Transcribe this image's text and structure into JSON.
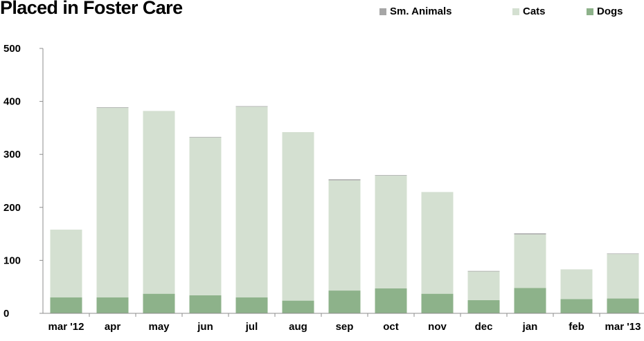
{
  "chart_data": {
    "type": "bar",
    "stacked": true,
    "title": "Placed in Foster Care",
    "categories": [
      "mar '12",
      "apr",
      "may",
      "jun",
      "jul",
      "aug",
      "sep",
      "oct",
      "nov",
      "dec",
      "jan",
      "feb",
      "mar '13"
    ],
    "series": [
      {
        "name": "Dogs",
        "color": "#8db28a",
        "values": [
          30,
          30,
          37,
          34,
          30,
          24,
          43,
          47,
          37,
          25,
          48,
          27,
          28
        ]
      },
      {
        "name": "Cats",
        "color": "#d4e0d1",
        "values": [
          128,
          358,
          345,
          298,
          360,
          318,
          208,
          213,
          192,
          54,
          101,
          56,
          84
        ]
      },
      {
        "name": "Sm. Animals",
        "color": "#a6a6a6",
        "values": [
          0,
          1,
          0,
          1,
          1,
          0,
          2,
          1,
          0,
          1,
          2,
          0,
          1
        ]
      }
    ],
    "legend_order": [
      "Sm. Animals",
      "Cats",
      "Dogs"
    ],
    "legend_position": "top-right",
    "ylim": [
      0,
      500
    ],
    "yticks": [
      0,
      100,
      200,
      300,
      400,
      500
    ],
    "grid": false
  }
}
